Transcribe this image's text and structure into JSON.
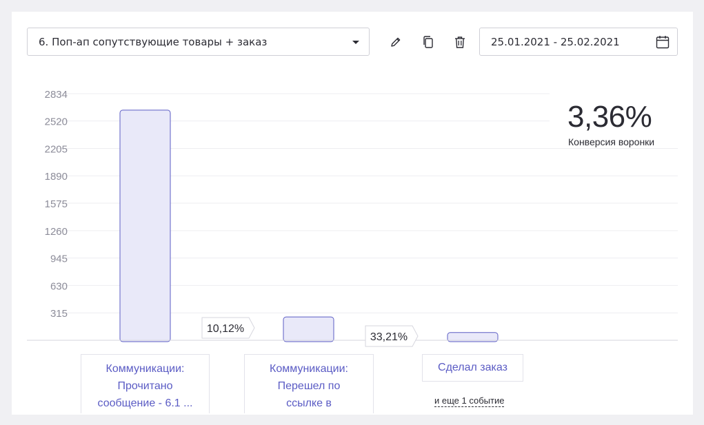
{
  "toolbar": {
    "funnel_select": "6. Поп-ап сопутствующие товары + заказ",
    "date_range": "25.01.2021 - 25.02.2021",
    "edit_icon": "pencil-icon",
    "copy_icon": "copy-icon",
    "delete_icon": "trash-icon",
    "calendar_icon": "calendar-icon"
  },
  "kpi": {
    "value": "3,36%",
    "label": "Конверсия воронки"
  },
  "stages": [
    {
      "label_line1": "Коммуникации:",
      "label_line2": "Прочитано",
      "label_line3": "сообщение - 6.1 ..."
    },
    {
      "label_line1": "Коммуникации:",
      "label_line2": "Перешел по",
      "label_line3": "ссылке в"
    },
    {
      "label_line1": "Сделал заказ"
    }
  ],
  "more_events": "и еще 1 событие",
  "chart_data": {
    "type": "bar",
    "categories": [
      "Коммуникации: Прочитано сообщение - 6.1 ...",
      "Коммуникации: Перешел по ссылке в",
      "Сделал заказ"
    ],
    "values": [
      2645,
      268,
      89
    ],
    "conversion_labels": [
      "10,12%",
      "33,21%"
    ],
    "yticks": [
      "2834",
      "2520",
      "2205",
      "1890",
      "1575",
      "1260",
      "945",
      "630",
      "315"
    ],
    "ylim": [
      0,
      2834
    ],
    "grid": true,
    "colors": {
      "bar_fill": "#e9e9f9",
      "bar_stroke": "#5a5bc4",
      "grid": "#ededf1",
      "tick": "#8c8c99"
    }
  }
}
